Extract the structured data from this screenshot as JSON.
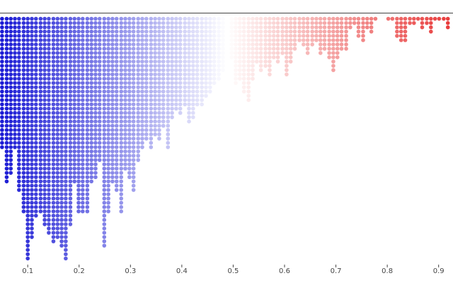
{
  "chart_data": {
    "type": "dot",
    "x": [
      0.05,
      0.059,
      0.067,
      0.075,
      0.083,
      0.092,
      0.1,
      0.108,
      0.116,
      0.125,
      0.133,
      0.141,
      0.15,
      0.158,
      0.166,
      0.174,
      0.183,
      0.191,
      0.199,
      0.207,
      0.216,
      0.224,
      0.232,
      0.24,
      0.249,
      0.257,
      0.265,
      0.273,
      0.282,
      0.29,
      0.298,
      0.306,
      0.315,
      0.323,
      0.331,
      0.34,
      0.348,
      0.356,
      0.364,
      0.373,
      0.381,
      0.389,
      0.397,
      0.406,
      0.414,
      0.422,
      0.43,
      0.439,
      0.447,
      0.455,
      0.463,
      0.472,
      0.48,
      0.488,
      0.497,
      0.505,
      0.513,
      0.521,
      0.53,
      0.538,
      0.546,
      0.554,
      0.563,
      0.571,
      0.579,
      0.587,
      0.596,
      0.604,
      0.612,
      0.62,
      0.629,
      0.637,
      0.645,
      0.654,
      0.662,
      0.67,
      0.678,
      0.687,
      0.695,
      0.703,
      0.711,
      0.72,
      0.728,
      0.736,
      0.744,
      0.753,
      0.761,
      0.769,
      0.777,
      0.802,
      0.81,
      0.819,
      0.827,
      0.835,
      0.844,
      0.852,
      0.86,
      0.868,
      0.877,
      0.885,
      0.893,
      0.901,
      0.91,
      0.918
    ],
    "values": [
      31,
      39,
      37,
      31,
      41,
      46,
      57,
      52,
      47,
      46,
      49,
      51,
      53,
      52,
      54,
      57,
      49,
      39,
      46,
      46,
      46,
      39,
      38,
      34,
      54,
      46,
      39,
      41,
      46,
      36,
      38,
      41,
      34,
      31,
      29,
      31,
      28,
      29,
      26,
      31,
      24,
      22,
      23,
      21,
      25,
      24,
      21,
      21,
      19,
      18,
      16,
      15,
      13,
      11,
      10,
      16,
      15,
      18,
      20,
      15,
      11,
      13,
      12,
      14,
      10,
      11,
      9,
      14,
      11,
      8,
      6,
      7,
      9,
      7,
      6,
      9,
      8,
      10,
      13,
      10,
      8,
      8,
      3,
      2,
      5,
      6,
      3,
      4,
      1,
      1,
      1,
      5,
      6,
      6,
      2,
      2,
      1,
      3,
      2,
      4,
      1,
      1,
      1,
      3
    ],
    "xlim": [
      0.046,
      0.928
    ],
    "xticks": [
      0.1,
      0.2,
      0.3,
      0.4,
      0.5,
      0.6,
      0.7,
      0.8,
      0.9
    ],
    "colormap": [
      "#1a1ad4",
      "#ffffff",
      "#e83a3a"
    ]
  }
}
